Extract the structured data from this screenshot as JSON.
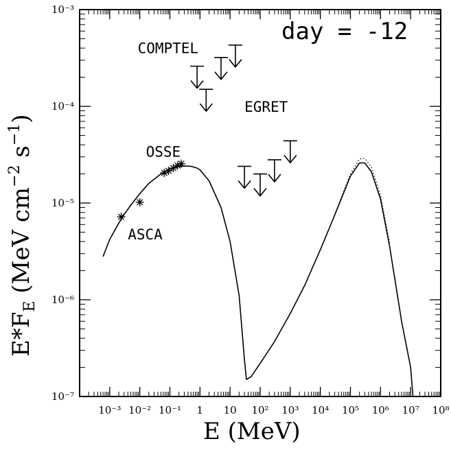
{
  "chart_data": {
    "type": "line",
    "title": "",
    "xlabel": "E (MeV)",
    "ylabel": "E*F_E (MeV cm^-2 s^-1)",
    "xscale": "log",
    "yscale": "log",
    "xlim": [
      0.0001,
      100000000
    ],
    "ylim": [
      1e-07,
      0.001
    ],
    "x_ticks": [
      {
        "value": 0.001,
        "label": "10⁻³"
      },
      {
        "value": 0.01,
        "label": "10⁻²"
      },
      {
        "value": 0.1,
        "label": "10⁻¹"
      },
      {
        "value": 1,
        "label": "1"
      },
      {
        "value": 10,
        "label": "10"
      },
      {
        "value": 100,
        "label": "10²"
      },
      {
        "value": 1000,
        "label": "10³"
      },
      {
        "value": 10000,
        "label": "10⁴"
      },
      {
        "value": 100000,
        "label": "10⁵"
      },
      {
        "value": 1000000,
        "label": "10⁶"
      },
      {
        "value": 10000000,
        "label": "10⁷"
      },
      {
        "value": 100000000,
        "label": "10⁸"
      }
    ],
    "y_ticks": [
      {
        "value": 1e-07,
        "label": "10⁻⁷"
      },
      {
        "value": 1e-06,
        "label": "10⁻⁶"
      },
      {
        "value": 1e-05,
        "label": "10⁻⁵"
      },
      {
        "value": 0.0001,
        "label": "10⁻⁴"
      },
      {
        "value": 0.001,
        "label": "10⁻³"
      }
    ],
    "series": [
      {
        "style": "solid",
        "x": [
          0.0006,
          0.001,
          0.002,
          0.003,
          0.005,
          0.01,
          0.02,
          0.05,
          0.1,
          0.2,
          0.3,
          0.5,
          0.8,
          1,
          2,
          5,
          10,
          20,
          30,
          35,
          50,
          100,
          300,
          1000,
          3000,
          10000,
          30000,
          100000,
          200000,
          300000,
          500000,
          1000000,
          2000000,
          5000000,
          10000000,
          12000000
        ],
        "y": [
          2.8e-06,
          4.2e-06,
          6.2e-06,
          7.6e-06,
          9.5e-06,
          1.25e-05,
          1.6e-05,
          2e-05,
          2.25e-05,
          2.4e-05,
          2.42e-05,
          2.4e-05,
          2.3e-05,
          2.2e-05,
          1.7e-05,
          9e-06,
          4e-06,
          1.1e-06,
          2.4e-07,
          1.5e-07,
          1.6e-07,
          2.2e-07,
          3.7e-07,
          7.2e-07,
          1.4e-06,
          3.3e-06,
          7.5e-06,
          1.9e-05,
          2.6e-05,
          2.6e-05,
          2.1e-05,
          1.1e-05,
          3.6e-06,
          6e-07,
          2e-07,
          1e-07
        ]
      },
      {
        "style": "dotted",
        "x": [
          30000,
          100000,
          200000,
          300000,
          500000,
          1000000,
          2000000
        ],
        "y": [
          7.6e-06,
          2e-05,
          2.85e-05,
          2.9e-05,
          2.35e-05,
          1.2e-05,
          3.9e-06
        ]
      }
    ],
    "data_points": [
      {
        "x": 0.0024,
        "y": 7.2e-06
      },
      {
        "x": 0.01,
        "y": 1.02e-05
      },
      {
        "x": 0.065,
        "y": 2.05e-05
      },
      {
        "x": 0.09,
        "y": 2.15e-05
      },
      {
        "x": 0.13,
        "y": 2.3e-05
      },
      {
        "x": 0.18,
        "y": 2.45e-05
      },
      {
        "x": 0.24,
        "y": 2.55e-05
      }
    ],
    "upper_limits": [
      {
        "instrument": "COMPTEL",
        "x": 0.8,
        "y": 0.00026
      },
      {
        "instrument": "COMPTEL",
        "x": 1.6,
        "y": 0.00015
      },
      {
        "instrument": "COMPTEL",
        "x": 5,
        "y": 0.00032
      },
      {
        "instrument": "COMPTEL",
        "x": 15,
        "y": 0.00043
      },
      {
        "instrument": "EGRET",
        "x": 30,
        "y": 2.4e-05
      },
      {
        "instrument": "EGRET",
        "x": 100,
        "y": 2e-05
      },
      {
        "instrument": "EGRET",
        "x": 300,
        "y": 2.8e-05
      },
      {
        "instrument": "EGRET",
        "x": 1000,
        "y": 4.4e-05
      }
    ],
    "annotations": [
      {
        "text": "COMPTEL",
        "x": 0.0085,
        "y": 0.000355
      },
      {
        "text": "EGRET",
        "x": 30,
        "y": 8.8e-05
      },
      {
        "text": "OSSE",
        "x": 0.016,
        "y": 3e-05
      },
      {
        "text": "ASCA",
        "x": 0.004,
        "y": 4.2e-06
      }
    ],
    "label_text": "day = -12"
  }
}
